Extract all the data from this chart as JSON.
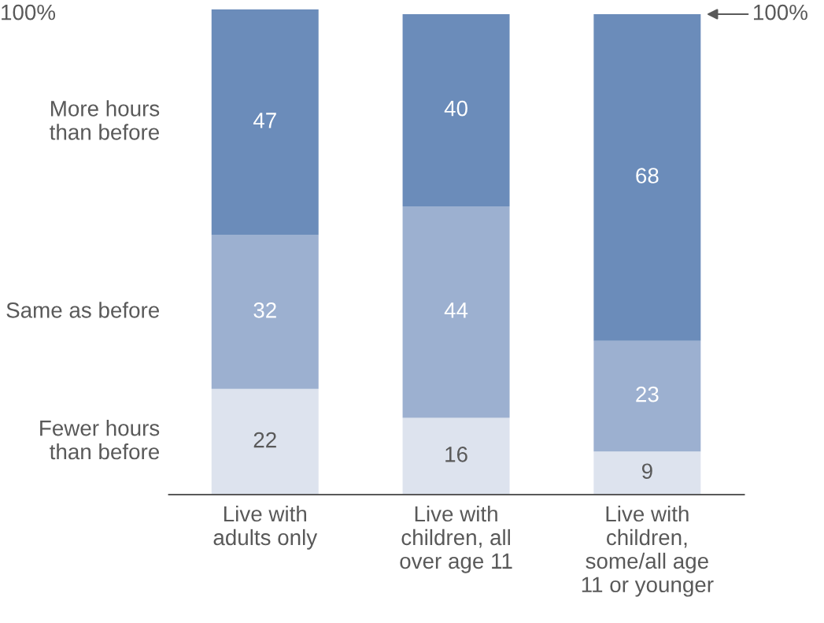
{
  "chart_data": {
    "type": "bar",
    "stacked": true,
    "data_labels": true,
    "categories": [
      "Live with\nadults only",
      "Live with\nchildren, all\nover age 11",
      "Live with\nchildren,\nsome/all age\n11 or younger"
    ],
    "series": [
      {
        "name": "Fewer hours\nthan before",
        "color": "#dde3ee",
        "values": [
          22,
          16,
          9
        ]
      },
      {
        "name": "Same as before",
        "color": "#9cb0d0",
        "values": [
          32,
          44,
          23
        ]
      },
      {
        "name": "More hours\nthan before",
        "color": "#6b8cba",
        "values": [
          47,
          40,
          68
        ]
      }
    ],
    "ylim": [
      0,
      101
    ],
    "annotations": [
      "100%",
      "100%"
    ]
  }
}
